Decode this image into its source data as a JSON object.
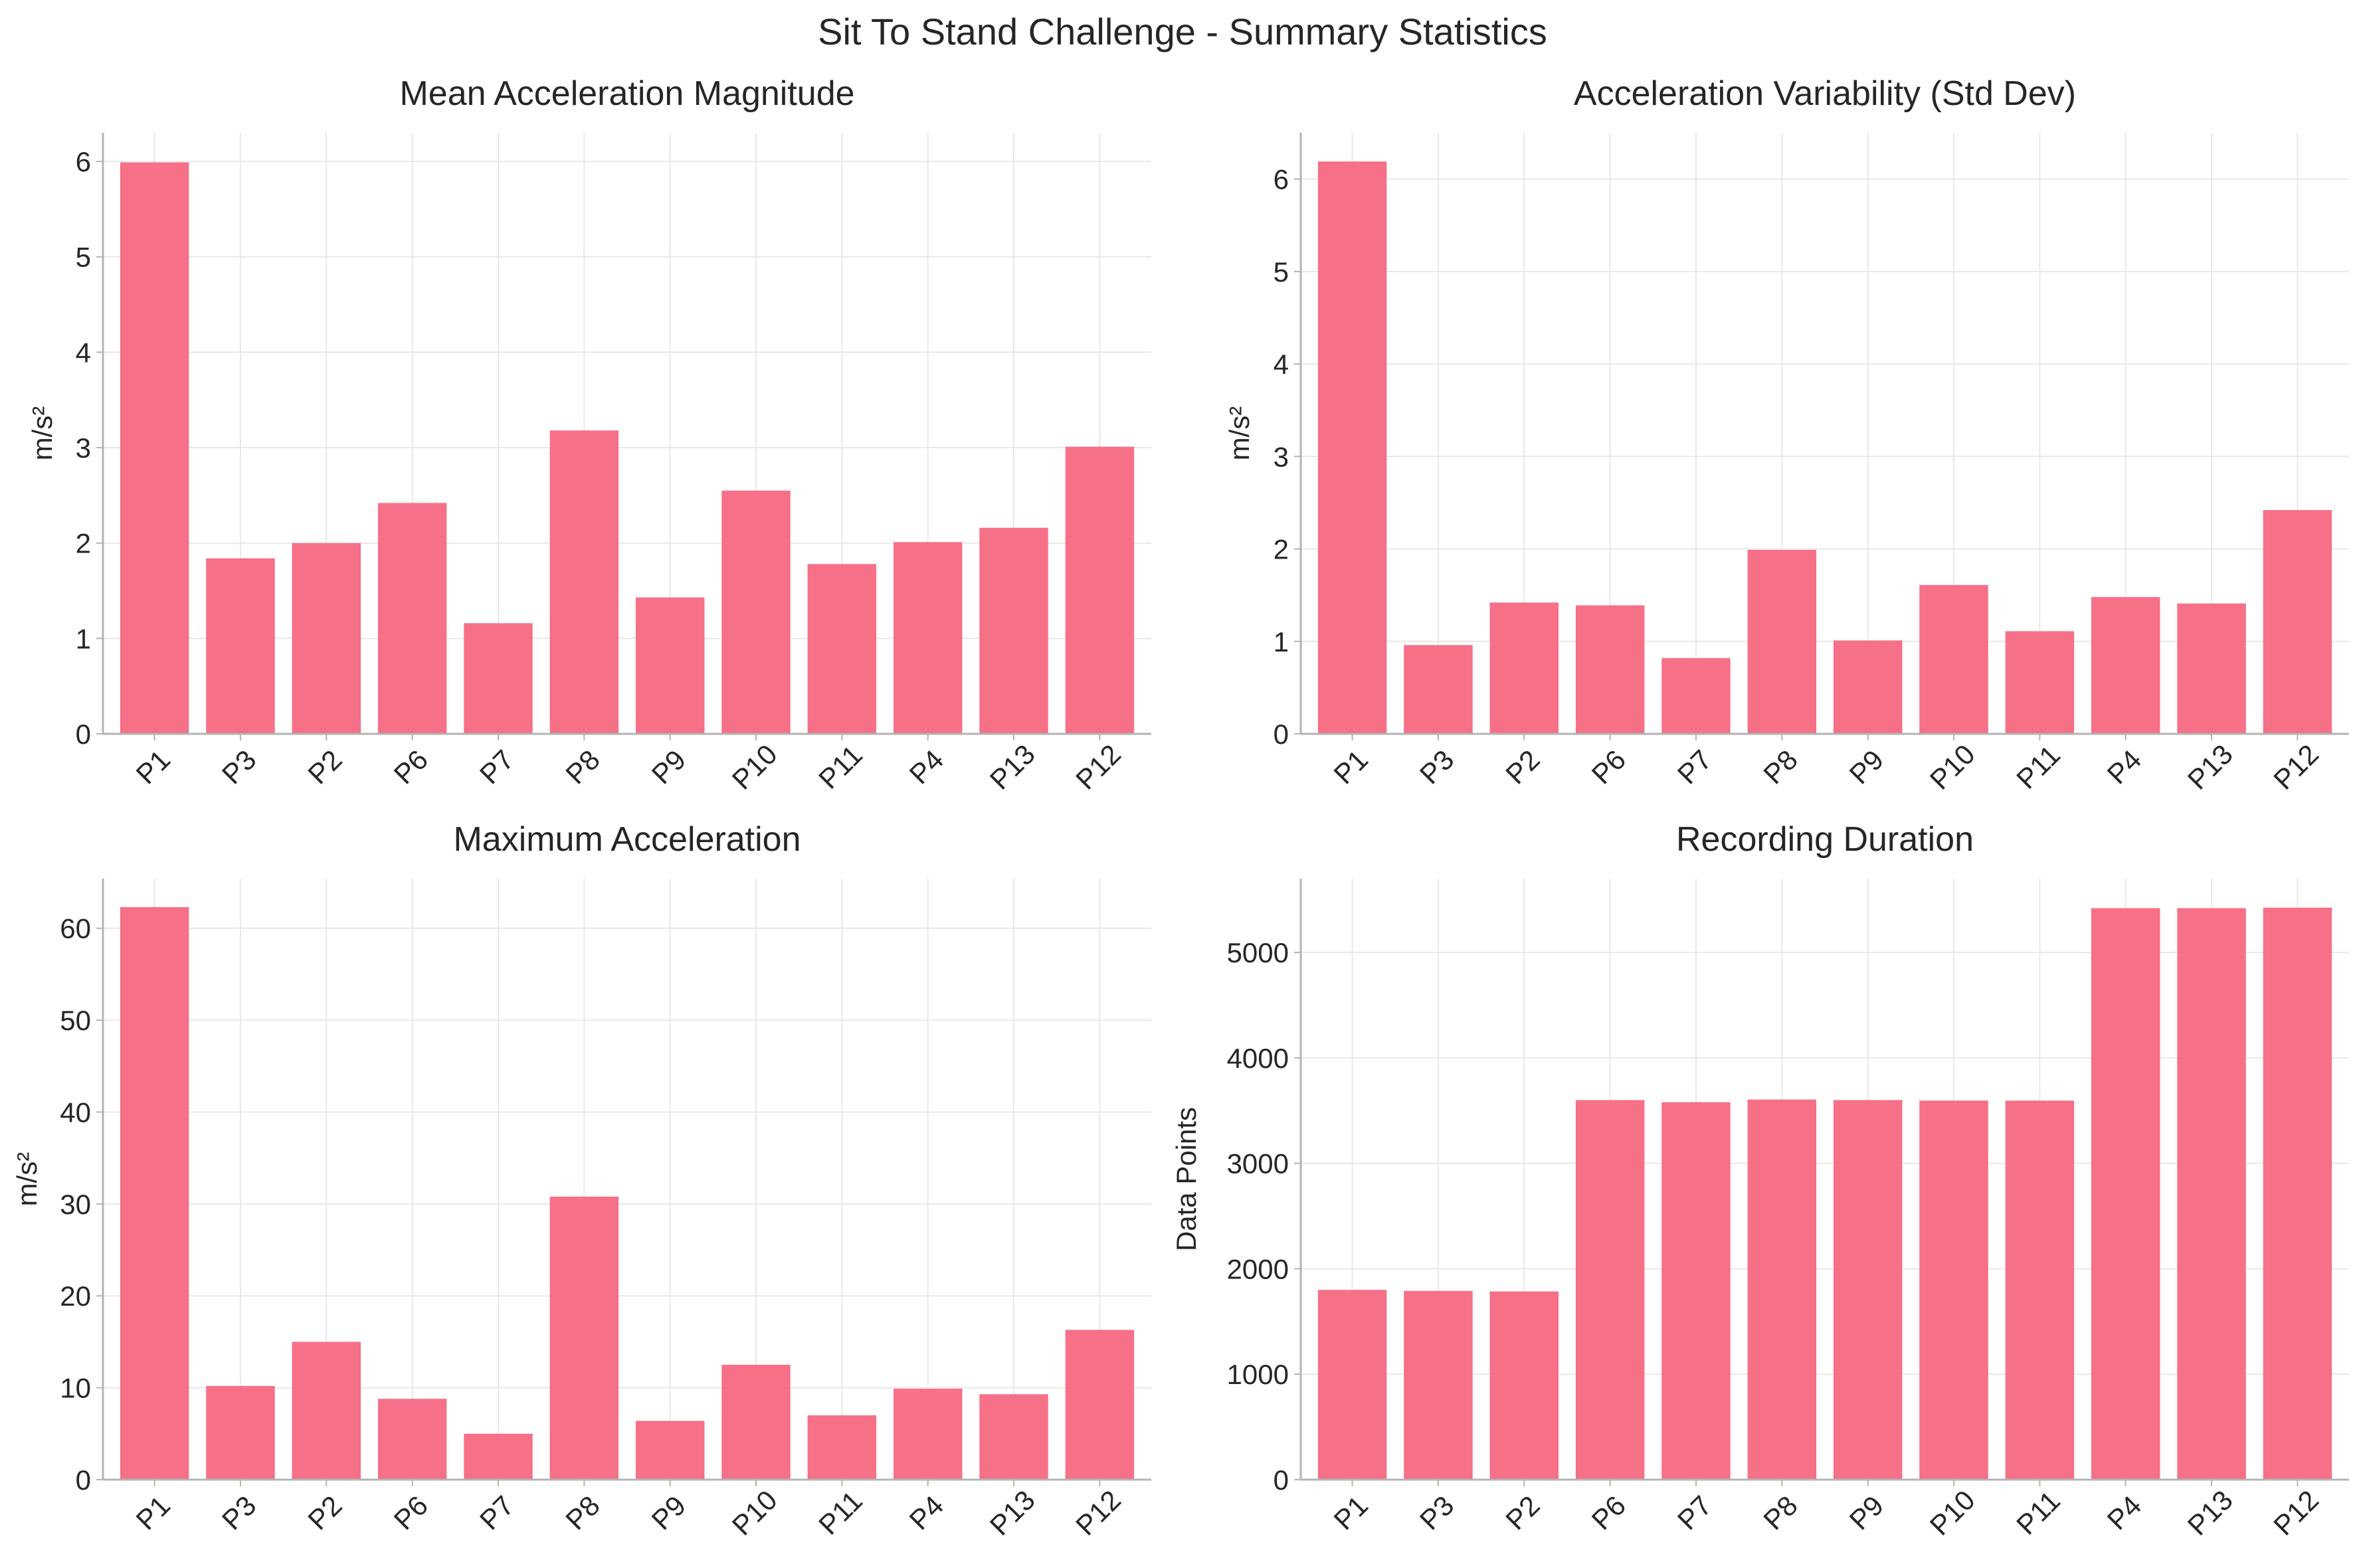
{
  "figure": {
    "title": "Sit To Stand Challenge - Summary Statistics",
    "bar_color": "#f67088",
    "grid_color": "#e8e8e8",
    "spine_color": "#b3b3b3"
  },
  "chart_data": [
    {
      "type": "bar",
      "title": "Mean Acceleration Magnitude",
      "xlabel": "",
      "ylabel": "m/s²",
      "categories": [
        "P1",
        "P3",
        "P2",
        "P6",
        "P7",
        "P8",
        "P9",
        "P10",
        "P11",
        "P4",
        "P13",
        "P12"
      ],
      "values": [
        5.99,
        1.84,
        2.0,
        2.42,
        1.16,
        3.18,
        1.43,
        2.55,
        1.78,
        2.01,
        2.16,
        3.01
      ],
      "ylim": [
        0,
        6.3
      ],
      "yticks": [
        0,
        1,
        2,
        3,
        4,
        5,
        6
      ],
      "grid": true
    },
    {
      "type": "bar",
      "title": "Acceleration Variability (Std Dev)",
      "xlabel": "",
      "ylabel": "m/s²",
      "categories": [
        "P1",
        "P3",
        "P2",
        "P6",
        "P7",
        "P8",
        "P9",
        "P10",
        "P11",
        "P4",
        "P13",
        "P12"
      ],
      "values": [
        6.19,
        0.96,
        1.42,
        1.39,
        0.82,
        1.99,
        1.01,
        1.61,
        1.11,
        1.48,
        1.41,
        2.42
      ],
      "ylim": [
        0,
        6.5
      ],
      "yticks": [
        0,
        1,
        2,
        3,
        4,
        5,
        6
      ],
      "grid": true
    },
    {
      "type": "bar",
      "title": "Maximum Acceleration",
      "xlabel": "",
      "ylabel": "m/s²",
      "categories": [
        "P1",
        "P3",
        "P2",
        "P6",
        "P7",
        "P8",
        "P9",
        "P10",
        "P11",
        "P4",
        "P13",
        "P12"
      ],
      "values": [
        62.3,
        10.2,
        15.0,
        8.8,
        5.0,
        30.8,
        6.4,
        12.5,
        7.0,
        9.9,
        9.3,
        16.3
      ],
      "ylim": [
        0,
        65.4
      ],
      "yticks": [
        0,
        10,
        20,
        30,
        40,
        50,
        60
      ],
      "grid": true
    },
    {
      "type": "bar",
      "title": "Recording Duration",
      "xlabel": "",
      "ylabel": "Data Points",
      "categories": [
        "P1",
        "P3",
        "P2",
        "P6",
        "P7",
        "P8",
        "P9",
        "P10",
        "P11",
        "P4",
        "P13",
        "P12"
      ],
      "values": [
        1800,
        1790,
        1785,
        3600,
        3580,
        3605,
        3600,
        3595,
        3595,
        5420,
        5420,
        5425
      ],
      "ylim": [
        0,
        5700
      ],
      "yticks": [
        0,
        1000,
        2000,
        3000,
        4000,
        5000
      ],
      "grid": true
    }
  ]
}
